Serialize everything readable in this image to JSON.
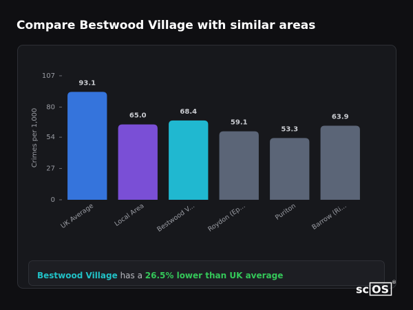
{
  "header": {
    "title": "Compare Bestwood Village with similar areas"
  },
  "chart_data": {
    "type": "bar",
    "ylabel": "Crimes per 1,000",
    "categories": [
      "UK Average",
      "Local Area",
      "Bestwood V...",
      "Roydon (Ep...",
      "Puriton",
      "Barrow (Ri..."
    ],
    "values": [
      93.1,
      65.0,
      68.4,
      59.1,
      53.3,
      63.9
    ],
    "value_labels": [
      "93.1",
      "65.0",
      "68.4",
      "59.1",
      "53.3",
      "63.9"
    ],
    "colors": [
      "#3574dc",
      "#7a4fd6",
      "#20b8d0",
      "#5b6577",
      "#5b6577",
      "#5b6577"
    ],
    "ylim": [
      0,
      107
    ],
    "yticks": [
      0,
      27,
      54,
      80,
      107
    ],
    "grid": false
  },
  "summary": {
    "place": "Bestwood Village",
    "middle": " has a ",
    "comparison": "26.5% lower than UK average"
  },
  "logo": {
    "prefix": "sc",
    "boxed": "OS",
    "mark": "®"
  }
}
